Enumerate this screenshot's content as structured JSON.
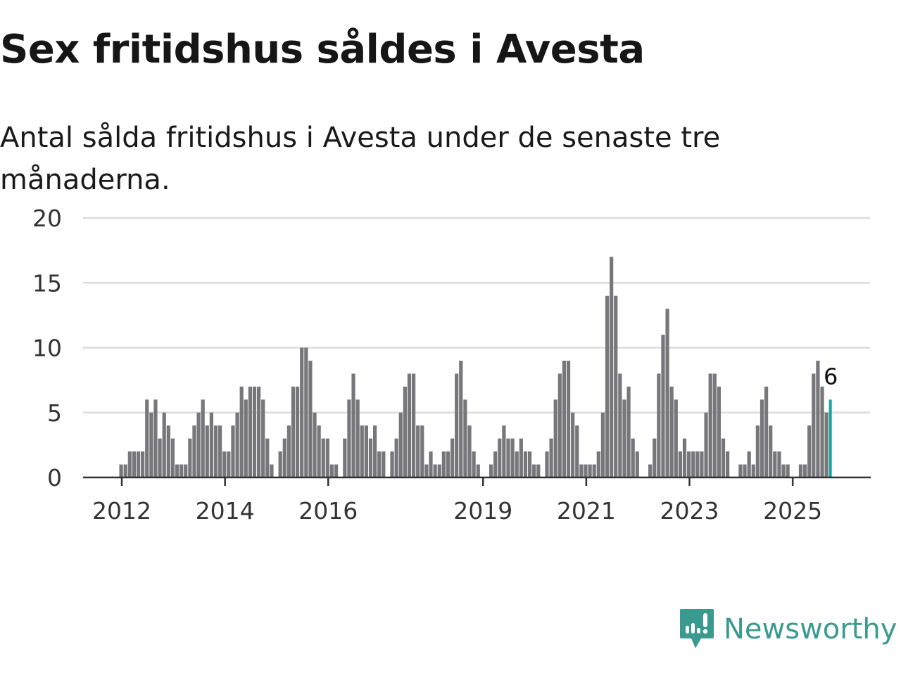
{
  "title": "Sex fritidshus såldes i Avesta",
  "subtitle": "Antal sålda fritidshus i Avesta under de senaste tre månaderna.",
  "brand": {
    "name": "Newsworthy",
    "color": "#3a9a90"
  },
  "chart_data": {
    "type": "bar",
    "title": "Sex fritidshus såldes i Avesta",
    "subtitle": "Antal sålda fritidshus i Avesta under de senaste tre månaderna.",
    "xlabel": "",
    "ylabel": "",
    "start": "2012-01",
    "frequency": "monthly",
    "ylim": [
      0,
      20
    ],
    "yticks": [
      "0",
      "5",
      "10",
      "15",
      "20"
    ],
    "xticks": [
      {
        "label": "2012",
        "year": 2012
      },
      {
        "label": "2014",
        "year": 2014
      },
      {
        "label": "2016",
        "year": 2016
      },
      {
        "label": "2019",
        "year": 2019
      },
      {
        "label": "2021",
        "year": 2021
      },
      {
        "label": "2023",
        "year": 2023
      },
      {
        "label": "2025",
        "year": 2025
      }
    ],
    "grid": true,
    "bar_color": "#76767b",
    "highlight_color": "#1aa39a",
    "highlight_label": "6",
    "values": [
      1,
      1,
      2,
      2,
      2,
      2,
      6,
      5,
      6,
      3,
      5,
      4,
      3,
      1,
      1,
      1,
      3,
      4,
      5,
      6,
      4,
      5,
      4,
      4,
      2,
      2,
      4,
      5,
      7,
      6,
      7,
      7,
      7,
      6,
      3,
      1,
      0,
      2,
      3,
      4,
      7,
      7,
      10,
      10,
      9,
      5,
      4,
      3,
      3,
      1,
      1,
      0,
      3,
      6,
      8,
      6,
      4,
      4,
      3,
      4,
      2,
      2,
      0,
      2,
      3,
      5,
      7,
      8,
      8,
      4,
      4,
      1,
      2,
      1,
      1,
      2,
      2,
      3,
      8,
      9,
      6,
      4,
      2,
      1,
      0,
      0,
      1,
      2,
      3,
      4,
      3,
      3,
      2,
      3,
      2,
      2,
      1,
      1,
      0,
      2,
      3,
      6,
      8,
      9,
      9,
      5,
      4,
      1,
      1,
      1,
      1,
      2,
      5,
      14,
      17,
      14,
      8,
      6,
      7,
      3,
      2,
      0,
      0,
      1,
      3,
      8,
      11,
      13,
      7,
      6,
      2,
      3,
      2,
      2,
      2,
      2,
      5,
      8,
      8,
      7,
      3,
      2,
      0,
      0,
      1,
      1,
      2,
      1,
      4,
      6,
      7,
      4,
      2,
      2,
      1,
      1,
      0,
      0,
      1,
      1,
      4,
      8,
      9,
      7,
      5,
      6
    ]
  }
}
